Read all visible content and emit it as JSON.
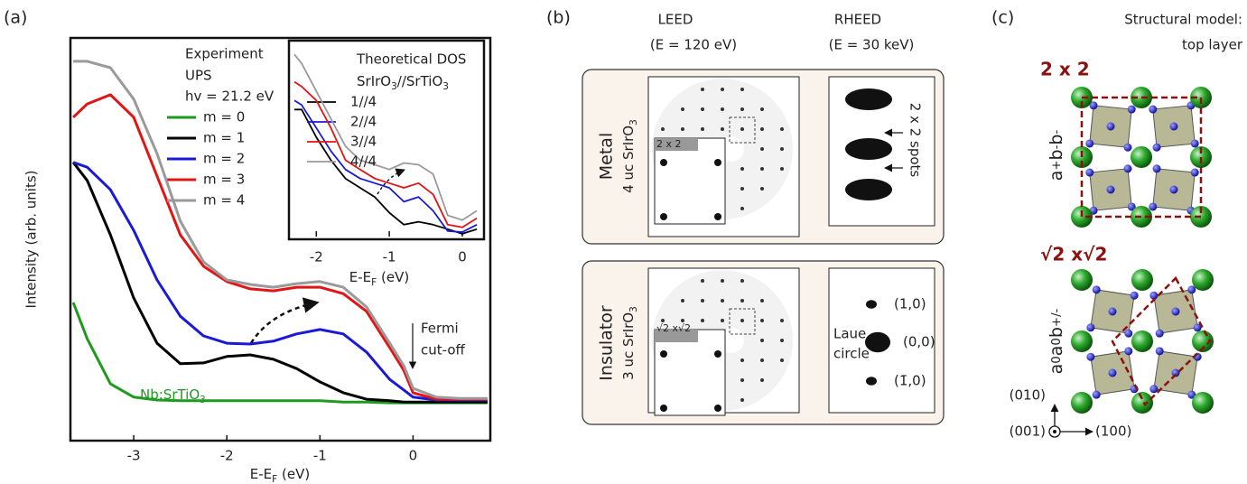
{
  "panel_labels": [
    "(a)",
    "(b)",
    "(c)"
  ],
  "chart_data": [
    {
      "type": "line",
      "ylabel": "Intensity (arb. units)",
      "xlabel": [
        "E-E",
        {
          "sub": "F"
        },
        " (eV)"
      ],
      "legend_title": [
        "Experiment",
        "UPS",
        "hv = 21.2 eV"
      ],
      "x": [
        -3.65,
        -3.5,
        -3.25,
        -3,
        -2.75,
        -2.5,
        -2.25,
        -2,
        -1.75,
        -1.5,
        -1.25,
        -1,
        -0.75,
        -0.5,
        -0.25,
        -0.1,
        0,
        0.25,
        0.5,
        0.8
      ],
      "xlim": [
        -3.68,
        0.83
      ],
      "xticks": [
        -3,
        -2,
        -1,
        0
      ],
      "ylim": [
        0,
        100
      ],
      "series": [
        {
          "name": "m = 0",
          "color": "#1e9a1e",
          "values": [
            34.3,
            25.3,
            14.1,
            10.8,
            10.1,
            9.9,
            9.9,
            9.9,
            9.9,
            9.9,
            9.9,
            9.9,
            9.6,
            9.6,
            9.4,
            9.4,
            9.4,
            9.4,
            9.4,
            9.4
          ]
        },
        {
          "name": "m = 1",
          "color": "#000000",
          "values": [
            69.1,
            64.6,
            51.1,
            35.4,
            24.2,
            19.1,
            19.3,
            20.9,
            21.3,
            20.2,
            17.9,
            14.6,
            11.9,
            10.3,
            9.9,
            9.6,
            9.6,
            9.6,
            9.6,
            9.6
          ]
        },
        {
          "name": "m = 2",
          "color": "#1a1ad6",
          "values": [
            69.1,
            67.9,
            62.3,
            52.2,
            39.9,
            30.9,
            26.0,
            24.2,
            24.0,
            24.7,
            26.5,
            27.6,
            26.5,
            22.0,
            15.2,
            12.6,
            10.8,
            10.1,
            10.1,
            10.1
          ]
        },
        {
          "name": "m = 3",
          "color": "#e31414",
          "values": [
            80.3,
            83.6,
            85.9,
            80.3,
            65.7,
            51.1,
            43.3,
            39.5,
            37.7,
            37.2,
            38.1,
            38.1,
            36.5,
            32.1,
            23.1,
            17.5,
            11.9,
            10.3,
            10.3,
            10.3
          ]
        },
        {
          "name": "m = 4",
          "color": "#9a9a9a",
          "values": [
            94.2,
            94.2,
            92.6,
            84.8,
            71.3,
            54.5,
            44.4,
            39.9,
            38.8,
            38.1,
            39.0,
            39.5,
            38.1,
            33.2,
            24.2,
            18.6,
            13.0,
            10.8,
            10.5,
            10.5
          ]
        }
      ],
      "substrate_label": [
        "Nb:SrTiO",
        {
          "sub": "3"
        }
      ],
      "fermi_label": [
        "Fermi",
        "cut-off"
      ]
    },
    {
      "type": "line",
      "title": "Theoretical DOS",
      "subtitle": [
        "SrIrO",
        {
          "sub": "3"
        },
        "//SrTiO",
        {
          "sub": "3"
        }
      ],
      "xlabel": [
        "E-E",
        {
          "sub": "F"
        },
        " (eV)"
      ],
      "x": [
        -2.3,
        -2.2,
        -2.0,
        -1.8,
        -1.6,
        -1.4,
        -1.2,
        -1.0,
        -0.8,
        -0.6,
        -0.4,
        -0.2,
        0,
        0.2
      ],
      "xlim": [
        -2.35,
        0.26
      ],
      "xticks": [
        -2,
        -1,
        0
      ],
      "ylim": [
        0,
        100
      ],
      "series": [
        {
          "name": "1//4",
          "color": "#000000",
          "values": [
            67,
            67,
            52.4,
            40.3,
            30.6,
            25.7,
            20.9,
            12.6,
            6.3,
            7.8,
            6.3,
            3.9,
            1.5,
            3.9
          ]
        },
        {
          "name": "2//4",
          "color": "#1a1ad6",
          "values": [
            71.8,
            69.4,
            57.3,
            45.1,
            35.4,
            30.6,
            28.2,
            25.7,
            18.4,
            20.9,
            13.6,
            2.9,
            2.4,
            6.3
          ]
        },
        {
          "name": "3//4",
          "color": "#e31414",
          "values": [
            81.6,
            79.1,
            71.8,
            57.3,
            40.3,
            35.4,
            30.6,
            28.2,
            25.7,
            28.2,
            22.3,
            6.3,
            4.9,
            9.7
          ]
        },
        {
          "name": "4//4",
          "color": "#9a9a9a",
          "values": [
            96.1,
            91.3,
            76.7,
            62.1,
            47.6,
            40.3,
            37.9,
            35.4,
            38.8,
            37.9,
            33.0,
            11.2,
            8.7,
            13.6
          ]
        }
      ]
    }
  ],
  "diffraction": {
    "leed": {
      "title": "LEED",
      "energy": "(E = 120 eV)"
    },
    "rheed": {
      "title": "RHEED",
      "energy": "(E = 30 keV)"
    },
    "metal": {
      "label": "Metal",
      "sample": [
        "4 uc SrIrO",
        {
          "sub": "3"
        }
      ],
      "inset": "2 x 2",
      "spots": "2 x 2  spots"
    },
    "insulator": {
      "label": "Insulator",
      "sample": [
        "3 uc SrIrO",
        {
          "sub": "3"
        }
      ],
      "inset": "√2 x√2",
      "spots": [
        "(1,0)",
        "(0,0)",
        "(1̄,0)"
      ],
      "laue": [
        "Laue",
        "circle"
      ]
    }
  },
  "structure": {
    "title": [
      "Structural model:",
      "top layer"
    ],
    "top": {
      "cell": "2 x 2",
      "tilt": [
        "a",
        {
          "sup": "+"
        },
        "b",
        {
          "sup": "-"
        },
        "b",
        {
          "sup": "-"
        }
      ]
    },
    "bottom": {
      "cell": "√2 x√2",
      "tilt": [
        "a",
        {
          "sup": "0"
        },
        "a",
        {
          "sup": "0"
        },
        "b",
        {
          "sup": "+/-"
        }
      ]
    },
    "axes": [
      "(010)",
      "(001)",
      "(100)"
    ]
  }
}
